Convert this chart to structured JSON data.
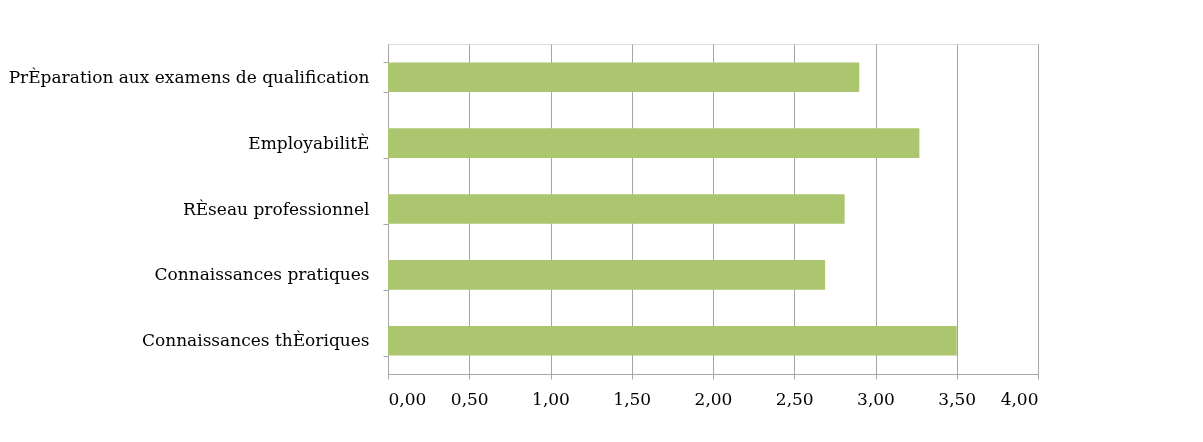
{
  "chart_data": {
    "type": "bar",
    "orientation": "horizontal",
    "categories": [
      "PrÈparation aux examens de qualification",
      "EmployabilitÈ",
      "RÈseau professionnel",
      "Connaissances pratiques",
      "Connaissances thÈoriques"
    ],
    "values": [
      2.9,
      3.27,
      2.81,
      2.69,
      3.5
    ],
    "color": "#abc66e",
    "xlim": [
      0,
      4
    ],
    "xticks": [
      {
        "value": 0,
        "label": "0,00"
      },
      {
        "value": 0.5,
        "label": "0,50"
      },
      {
        "value": 1,
        "label": "1,00"
      },
      {
        "value": 1.5,
        "label": "1,50"
      },
      {
        "value": 2,
        "label": "2,00"
      },
      {
        "value": 2.5,
        "label": "2,50"
      },
      {
        "value": 3,
        "label": "3,00"
      },
      {
        "value": 3.5,
        "label": "3,50"
      },
      {
        "value": 4,
        "label": "4,00"
      }
    ],
    "grid": "x"
  }
}
